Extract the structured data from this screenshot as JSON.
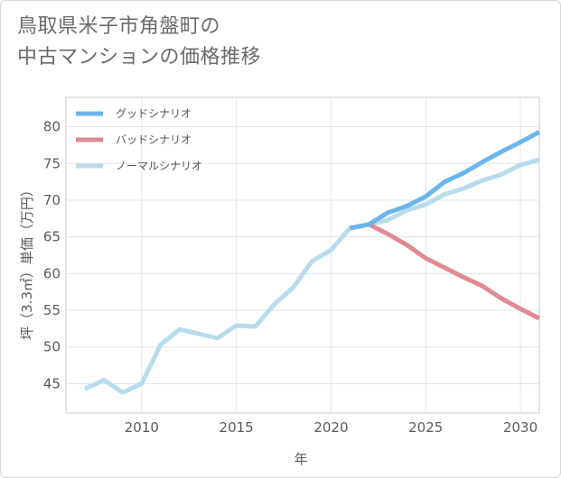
{
  "title_line1": "鳥取県米子市角盤町の",
  "title_line2": "中古マンションの価格推移",
  "chart_data": {
    "type": "line",
    "xlabel": "年",
    "ylabel": "坪（3.3㎡）単価（万円）",
    "xlim": [
      2006,
      2031
    ],
    "ylim": [
      41,
      84
    ],
    "xticks": [
      2010,
      2015,
      2020,
      2025,
      2030
    ],
    "yticks": [
      45,
      50,
      55,
      60,
      65,
      70,
      75,
      80
    ],
    "grid": true,
    "legend_position": "top-left",
    "series": [
      {
        "name": "グッドシナリオ",
        "color": "#6bb5ec",
        "x": [
          2021,
          2022,
          2023,
          2024,
          2025,
          2026,
          2027,
          2028,
          2029,
          2030,
          2031
        ],
        "y": [
          66.2,
          66.7,
          68.3,
          69.2,
          70.5,
          72.5,
          73.7,
          75.2,
          76.6,
          77.9,
          79.3
        ]
      },
      {
        "name": "バッドシナリオ",
        "color": "#df8a94",
        "x": [
          2021,
          2022,
          2023,
          2024,
          2025,
          2026,
          2027,
          2028,
          2029,
          2030,
          2031
        ],
        "y": [
          66.2,
          66.7,
          65.4,
          63.9,
          62.1,
          60.8,
          59.5,
          58.3,
          56.6,
          55.2,
          53.9
        ]
      },
      {
        "name": "ノーマルシナリオ",
        "color": "#b9dcec",
        "x": [
          2007,
          2008,
          2009,
          2010,
          2011,
          2012,
          2013,
          2014,
          2015,
          2016,
          2017,
          2018,
          2019,
          2020,
          2021,
          2022,
          2023,
          2024,
          2025,
          2026,
          2027,
          2028,
          2029,
          2030,
          2031
        ],
        "y": [
          44.3,
          45.5,
          43.8,
          45.0,
          50.3,
          52.4,
          51.8,
          51.2,
          52.9,
          52.8,
          55.8,
          58.1,
          61.7,
          63.2,
          66.2,
          66.7,
          67.3,
          68.6,
          69.4,
          70.8,
          71.6,
          72.7,
          73.5,
          74.8,
          75.5
        ]
      }
    ]
  }
}
